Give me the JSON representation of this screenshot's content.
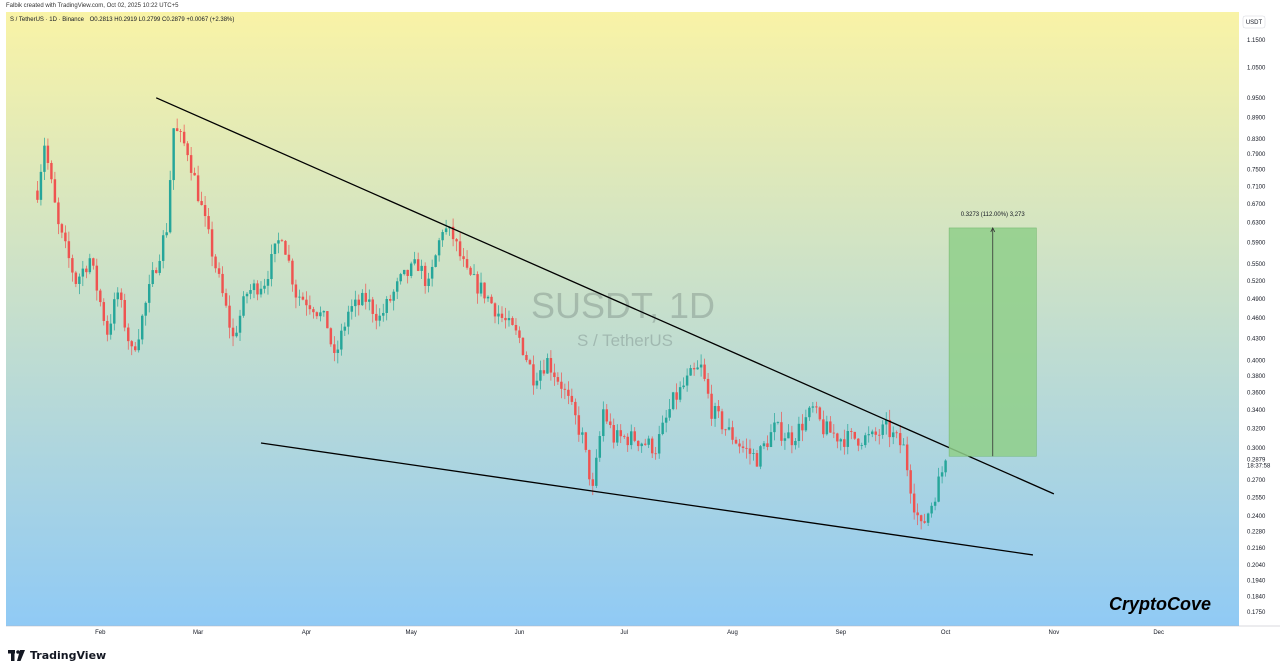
{
  "header": {
    "published_by": "Falbik created with TradingView.com, Oct 02, 2025 10:22 UTC+5"
  },
  "footer": {
    "logo_text": "TradingView"
  },
  "chart_data": {
    "type": "candlestick",
    "symbol_line": "S / TetherUS · 1D · Binance",
    "ohlc_line": "O0.2813 H0.2919 L0.2799 C0.2879 +0.0067 (+2.38%)",
    "currency": "USDT",
    "watermark_title": "SUSDT, 1D",
    "watermark_subtitle": "S / TetherUS",
    "signature": "CryptoCove",
    "last_price": {
      "value": "0.2879",
      "countdown": "18:37:58",
      "color": "#26a69a"
    },
    "y_scale": "log",
    "ylim": [
      0.167,
      1.26
    ],
    "y_ticks": [
      "1.1500",
      "1.0500",
      "0.9500",
      "0.8900",
      "0.8300",
      "0.7900",
      "0.7500",
      "0.7100",
      "0.6700",
      "0.6300",
      "0.5900",
      "0.5500",
      "0.5200",
      "0.4900",
      "0.4600",
      "0.4300",
      "0.4000",
      "0.3800",
      "0.3600",
      "0.3400",
      "0.3200",
      "0.3000",
      "0.2700",
      "0.2550",
      "0.2400",
      "0.2280",
      "0.2160",
      "0.2040",
      "0.1940",
      "0.1840",
      "0.1750"
    ],
    "x_ticks": [
      {
        "label": "Feb",
        "date": "2025-02-01"
      },
      {
        "label": "Mar",
        "date": "2025-03-01"
      },
      {
        "label": "Apr",
        "date": "2025-04-01"
      },
      {
        "label": "May",
        "date": "2025-05-01"
      },
      {
        "label": "Jun",
        "date": "2025-06-01"
      },
      {
        "label": "Jul",
        "date": "2025-07-01"
      },
      {
        "label": "Aug",
        "date": "2025-08-01"
      },
      {
        "label": "Sep",
        "date": "2025-09-01"
      },
      {
        "label": "Oct",
        "date": "2025-10-01"
      },
      {
        "label": "Nov",
        "date": "2025-11-01"
      },
      {
        "label": "Dec",
        "date": "2025-12-01"
      }
    ],
    "xlim": [
      "2025-01-05",
      "2025-12-24"
    ],
    "grid": false,
    "colors": {
      "up": "#26a69a",
      "down": "#ef5350",
      "trendline": "#000000",
      "target_box": "#8fcf8a",
      "bg_top": "#f9f3a6",
      "bg_bottom": "#90caf5"
    },
    "price_path": [
      {
        "date": "2025-01-14",
        "price": 0.7
      },
      {
        "date": "2025-01-16",
        "price": 0.82
      },
      {
        "date": "2025-01-20",
        "price": 0.62
      },
      {
        "date": "2025-01-25",
        "price": 0.52
      },
      {
        "date": "2025-01-29",
        "price": 0.56
      },
      {
        "date": "2025-02-03",
        "price": 0.44
      },
      {
        "date": "2025-02-06",
        "price": 0.5
      },
      {
        "date": "2025-02-10",
        "price": 0.41
      },
      {
        "date": "2025-02-12",
        "price": 0.44
      },
      {
        "date": "2025-02-17",
        "price": 0.55
      },
      {
        "date": "2025-02-20",
        "price": 0.62
      },
      {
        "date": "2025-02-22",
        "price": 0.86
      },
      {
        "date": "2025-02-26",
        "price": 0.8
      },
      {
        "date": "2025-03-02",
        "price": 0.66
      },
      {
        "date": "2025-03-07",
        "price": 0.52
      },
      {
        "date": "2025-03-11",
        "price": 0.43
      },
      {
        "date": "2025-03-15",
        "price": 0.5
      },
      {
        "date": "2025-03-20",
        "price": 0.52
      },
      {
        "date": "2025-03-25",
        "price": 0.61
      },
      {
        "date": "2025-03-29",
        "price": 0.5
      },
      {
        "date": "2025-04-03",
        "price": 0.48
      },
      {
        "date": "2025-04-07",
        "price": 0.45
      },
      {
        "date": "2025-04-09",
        "price": 0.4
      },
      {
        "date": "2025-04-13",
        "price": 0.47
      },
      {
        "date": "2025-04-18",
        "price": 0.49
      },
      {
        "date": "2025-04-22",
        "price": 0.46
      },
      {
        "date": "2025-04-28",
        "price": 0.52
      },
      {
        "date": "2025-05-03",
        "price": 0.55
      },
      {
        "date": "2025-05-06",
        "price": 0.51
      },
      {
        "date": "2025-05-10",
        "price": 0.62
      },
      {
        "date": "2025-05-13",
        "price": 0.6
      },
      {
        "date": "2025-05-17",
        "price": 0.53
      },
      {
        "date": "2025-05-22",
        "price": 0.5
      },
      {
        "date": "2025-05-27",
        "price": 0.46
      },
      {
        "date": "2025-06-01",
        "price": 0.43
      },
      {
        "date": "2025-06-05",
        "price": 0.38
      },
      {
        "date": "2025-06-09",
        "price": 0.4
      },
      {
        "date": "2025-06-13",
        "price": 0.37
      },
      {
        "date": "2025-06-17",
        "price": 0.33
      },
      {
        "date": "2025-06-19",
        "price": 0.31
      },
      {
        "date": "2025-06-22",
        "price": 0.26
      },
      {
        "date": "2025-06-25",
        "price": 0.34
      },
      {
        "date": "2025-06-28",
        "price": 0.31
      },
      {
        "date": "2025-07-04",
        "price": 0.31
      },
      {
        "date": "2025-07-10",
        "price": 0.3
      },
      {
        "date": "2025-07-15",
        "price": 0.35
      },
      {
        "date": "2025-07-20",
        "price": 0.38
      },
      {
        "date": "2025-07-23",
        "price": 0.39
      },
      {
        "date": "2025-07-26",
        "price": 0.34
      },
      {
        "date": "2025-07-30",
        "price": 0.32
      },
      {
        "date": "2025-08-04",
        "price": 0.3
      },
      {
        "date": "2025-08-08",
        "price": 0.29
      },
      {
        "date": "2025-08-13",
        "price": 0.32
      },
      {
        "date": "2025-08-18",
        "price": 0.31
      },
      {
        "date": "2025-08-24",
        "price": 0.34
      },
      {
        "date": "2025-08-27",
        "price": 0.32
      },
      {
        "date": "2025-09-01",
        "price": 0.31
      },
      {
        "date": "2025-09-06",
        "price": 0.31
      },
      {
        "date": "2025-09-10",
        "price": 0.31
      },
      {
        "date": "2025-09-14",
        "price": 0.32
      },
      {
        "date": "2025-09-19",
        "price": 0.3
      },
      {
        "date": "2025-09-22",
        "price": 0.25
      },
      {
        "date": "2025-09-24",
        "price": 0.23
      },
      {
        "date": "2025-09-27",
        "price": 0.25
      },
      {
        "date": "2025-10-01",
        "price": 0.2879
      }
    ],
    "trendlines": [
      {
        "name": "resistance",
        "from": {
          "date": "2025-02-17",
          "price": 0.95
        },
        "to": {
          "date": "2025-11-01",
          "price": 0.258
        }
      },
      {
        "name": "support",
        "from": {
          "date": "2025-03-19",
          "price": 0.305
        },
        "to": {
          "date": "2025-10-26",
          "price": 0.211
        }
      }
    ],
    "measure_box": {
      "label": "0.3273 (112.00%) 3,273",
      "from_date": "2025-10-02",
      "to_date": "2025-10-27",
      "bottom_price": 0.292,
      "top_price": 0.619
    }
  }
}
